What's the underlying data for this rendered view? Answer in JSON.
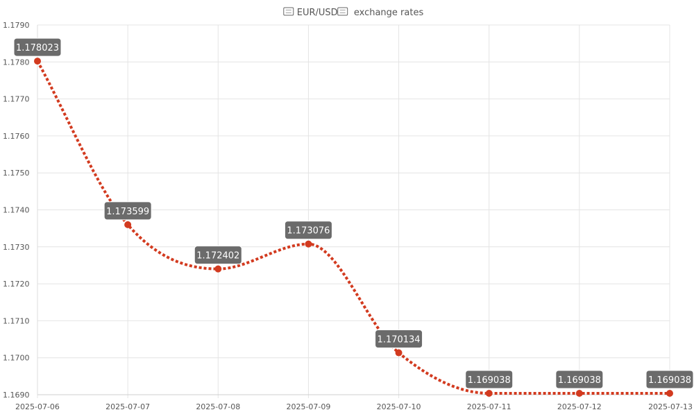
{
  "chart_data": {
    "type": "line",
    "title": "EUR/USD exchange rates",
    "title_icons": [
      "eu-flag-icon",
      "us-flag-icon"
    ],
    "xlabel": "",
    "ylabel": "",
    "x": [
      "2025-07-06",
      "2025-07-07",
      "2025-07-08",
      "2025-07-09",
      "2025-07-10",
      "2025-07-11",
      "2025-07-12",
      "2025-07-13"
    ],
    "series": [
      {
        "values": [
          1.178023,
          1.173599,
          1.172402,
          1.173076,
          1.170134,
          1.169038,
          1.169038,
          1.169038
        ],
        "color": "#d23a1f",
        "line_style": "dotted",
        "smooth": true
      }
    ],
    "data_labels": [
      "1.178023",
      "1.173599",
      "1.172402",
      "1.173076",
      "1.170134",
      "1.169038",
      "1.169038",
      "1.169038"
    ],
    "ylim": [
      1.169,
      1.179
    ],
    "y_ticks": [
      "1.1690",
      "1.1700",
      "1.1710",
      "1.1720",
      "1.1730",
      "1.1740",
      "1.1750",
      "1.1760",
      "1.1770",
      "1.1780",
      "1.1790"
    ],
    "grid": true,
    "legend": "none",
    "colors": {
      "line": "#d23a1f",
      "label_bg": "#6b6b6b",
      "label_text": "#ffffff",
      "grid": "#e4e4e4",
      "tick_text": "#555555"
    }
  }
}
